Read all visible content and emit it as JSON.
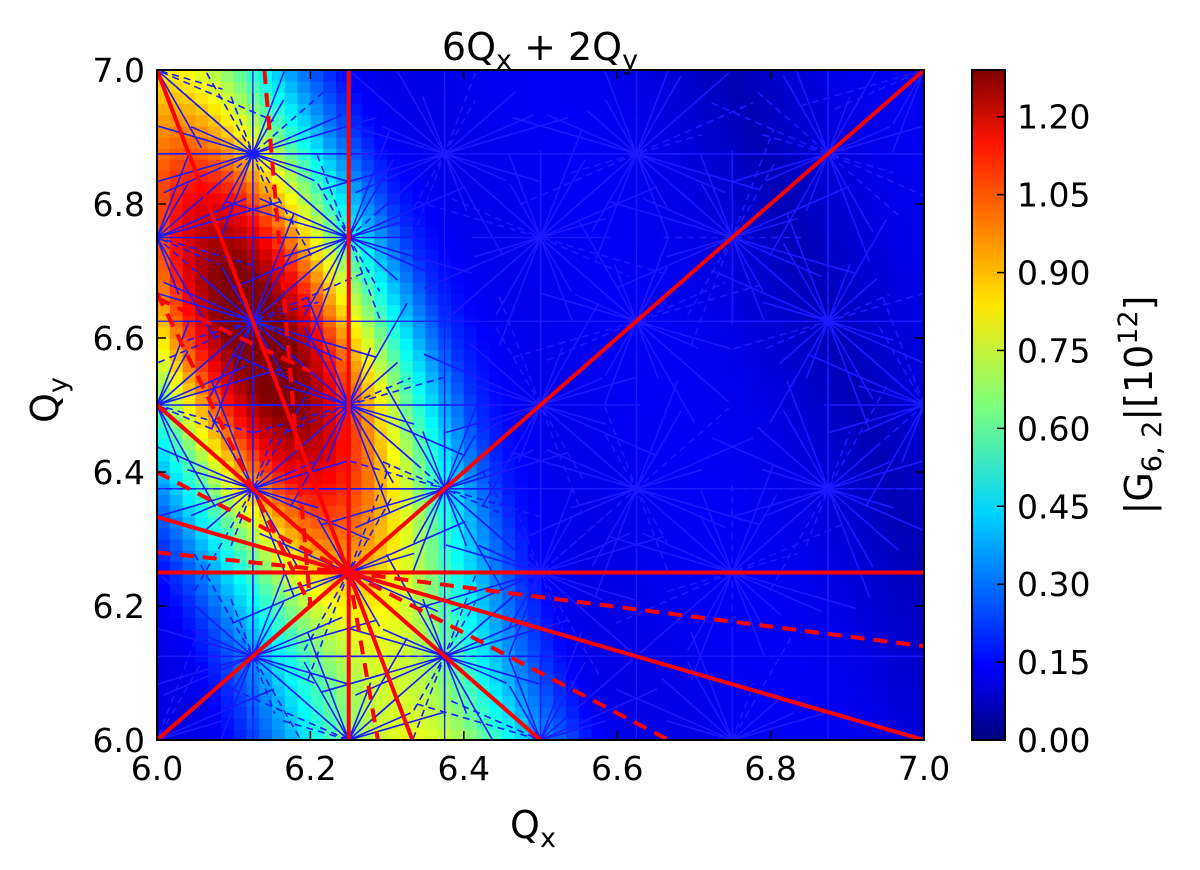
{
  "chart_data": {
    "type": "heatmap",
    "title": "6Qx + 2Qy",
    "title_parts": {
      "a": "6Q",
      "a_sub": "x",
      "b": " + 2Q",
      "b_sub": "y"
    },
    "xlabel": {
      "base": "Q",
      "sub": "x"
    },
    "ylabel": {
      "base": "Q",
      "sub": "y"
    },
    "xlim": [
      6.0,
      7.0
    ],
    "ylim": [
      6.0,
      7.0
    ],
    "x_ticks": [
      "6.0",
      "6.2",
      "6.4",
      "6.6",
      "6.8",
      "7.0"
    ],
    "y_ticks": [
      "6.0",
      "6.2",
      "6.4",
      "6.6",
      "6.8",
      "7.0"
    ],
    "grid": false,
    "colormap": "jet",
    "colorbar": {
      "label": {
        "prefix": "|G",
        "sub": "6, 2",
        "mid": "|[10",
        "sup": "12",
        "suffix": "]"
      },
      "range": [
        0.0,
        1.29
      ],
      "ticks": [
        "0.00",
        "0.15",
        "0.30",
        "0.45",
        "0.60",
        "0.75",
        "0.90",
        "1.05",
        "1.20"
      ]
    },
    "field": {
      "description": "oscillating intensity with stripes along 6Qx+2Qy = const",
      "stripe_period": 0.5,
      "peak_line": {
        "a": 6,
        "b": 2,
        "c": 50.0
      },
      "peak_value": 1.2,
      "background": 0.15
    },
    "resonance_lines_red_solid": [
      {
        "name": "Qx=6.25",
        "p1": [
          6.25,
          6.0
        ],
        "p2": [
          6.25,
          7.0
        ]
      },
      {
        "name": "Qy=6.25",
        "p1": [
          6.0,
          6.25
        ],
        "p2": [
          7.0,
          6.25
        ]
      },
      {
        "name": "Qx=Qy",
        "p1": [
          6.0,
          6.0
        ],
        "p2": [
          7.0,
          7.0
        ]
      },
      {
        "name": "3Qx+Qy",
        "p1": [
          6.0,
          7.0
        ],
        "p2": [
          6.333,
          6.0
        ]
      },
      {
        "name": "Qx-Qy",
        "p1": [
          6.0,
          6.5
        ],
        "p2": [
          6.25,
          6.25
        ]
      },
      {
        "name": "Qx+Qy",
        "p1": [
          6.0,
          6.5
        ],
        "p2": [
          6.5,
          6.0
        ]
      },
      {
        "name": "Qx+3Qy",
        "p1": [
          6.0,
          6.333
        ],
        "p2": [
          7.0,
          6.0
        ]
      },
      {
        "name": "Qx-Qy-b",
        "p1": [
          6.0,
          6.0
        ],
        "p2": [
          6.25,
          6.25
        ]
      }
    ],
    "resonance_lines_red_dashed": [
      {
        "name": "5Qx+Qy",
        "p1": [
          6.0,
          6.667
        ],
        "p2": [
          6.2,
          6.2
        ]
      },
      {
        "name": "2Qx+Qy",
        "p1": [
          6.0,
          6.4
        ],
        "p2": [
          6.25,
          6.25
        ]
      },
      {
        "name": "Qx+5Qy",
        "p1": [
          6.0,
          6.28
        ],
        "p2": [
          6.25,
          6.25
        ]
      },
      {
        "name": "Qx+5Qy-b",
        "p1": [
          6.25,
          6.25
        ],
        "p2": [
          7.0,
          6.14
        ]
      },
      {
        "name": "2Qx+Qy-b",
        "p1": [
          6.25,
          6.25
        ],
        "p2": [
          6.667,
          6.0
        ]
      },
      {
        "name": "5Qx+Qy-b",
        "p1": [
          6.25,
          6.25
        ],
        "p2": [
          6.288,
          6.0
        ]
      },
      {
        "name": "5Qx+Qy-c",
        "p1": [
          6.14,
          7.0
        ],
        "p2": [
          6.2,
          6.2
        ]
      },
      {
        "name": "Qx+5Qy-c",
        "p1": [
          6.0,
          6.66
        ],
        "p2": [
          6.2,
          6.55
        ]
      }
    ],
    "hubs": [
      [
        6.25,
        6.25
      ],
      [
        6.0,
        7.0
      ],
      [
        6.125,
        6.875
      ],
      [
        6.125,
        6.625
      ],
      [
        6.125,
        6.375
      ],
      [
        6.0,
        6.5
      ],
      [
        6.25,
        6.75
      ],
      [
        6.25,
        6.5
      ],
      [
        6.375,
        6.125
      ],
      [
        6.5,
        6.0
      ],
      [
        6.5,
        6.5
      ],
      [
        6.625,
        6.625
      ],
      [
        6.75,
        6.75
      ],
      [
        6.875,
        6.875
      ],
      [
        6.5,
        6.25
      ],
      [
        6.75,
        6.25
      ],
      [
        6.75,
        6.0
      ],
      [
        6.375,
        6.375
      ],
      [
        6.625,
        6.375
      ],
      [
        6.875,
        6.625
      ],
      [
        6.375,
        6.875
      ],
      [
        6.5,
        6.75
      ],
      [
        7.0,
        6.5
      ],
      [
        7.0,
        7.0
      ],
      [
        6.0,
        6.0
      ],
      [
        6.25,
        6.0
      ],
      [
        6.125,
        6.125
      ],
      [
        6.625,
        6.875
      ],
      [
        6.875,
        6.375
      ],
      [
        6.0,
        6.75
      ]
    ]
  }
}
